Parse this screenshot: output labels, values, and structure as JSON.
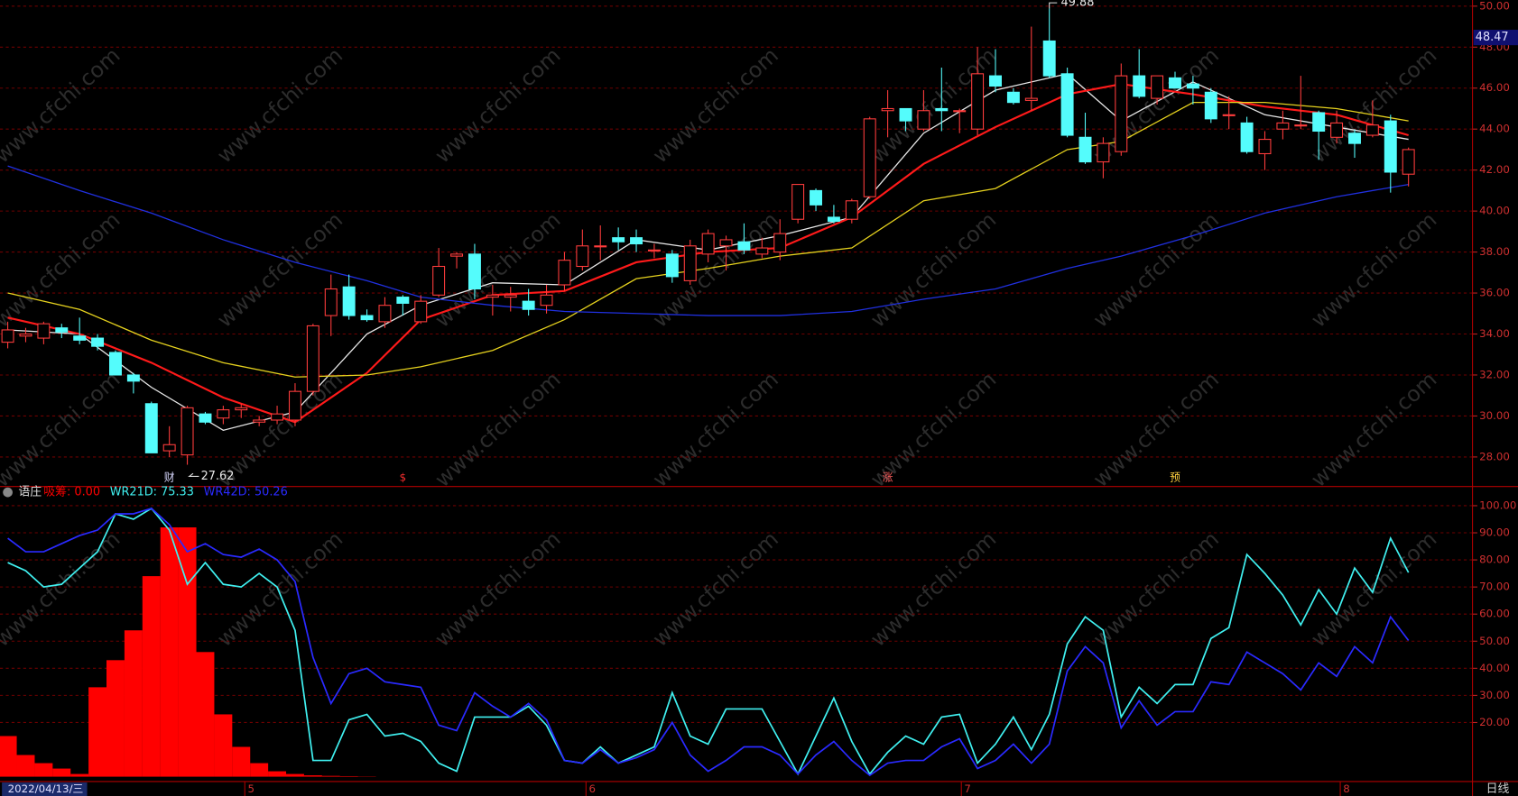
{
  "chart_data": [
    {
      "type": "candlestick",
      "open": [
        33.6,
        33.9,
        33.8,
        34.3,
        33.9,
        33.8,
        33.1,
        32.0,
        30.6,
        28.3,
        28.1,
        30.1,
        29.9,
        30.3,
        29.7,
        29.8,
        29.8,
        31.2,
        34.9,
        36.3,
        34.9,
        34.6,
        35.8,
        34.6,
        35.9,
        37.8,
        37.9,
        35.8,
        35.8,
        35.6,
        35.4,
        36.4,
        37.3,
        38.3,
        38.7,
        38.7,
        38.1,
        37.9,
        36.6,
        37.9,
        38.3,
        38.5,
        37.9,
        38.0,
        39.6,
        41.0,
        39.7,
        39.6,
        40.7,
        44.9,
        45.0,
        44.0,
        45.0,
        44.9,
        44.0,
        46.6,
        45.8,
        45.4,
        48.3,
        46.7,
        43.6,
        42.4,
        42.9,
        46.6,
        45.5,
        46.5,
        46.2,
        45.8,
        44.7,
        44.3,
        42.8,
        44.0,
        44.2,
        44.8,
        43.6,
        43.8,
        43.7,
        44.4,
        41.8
      ],
      "high": [
        34.6,
        34.3,
        34.6,
        34.5,
        34.8,
        34.0,
        33.2,
        32.1,
        30.7,
        29.5,
        30.5,
        30.2,
        30.5,
        30.6,
        30.0,
        30.5,
        31.6,
        34.5,
        36.9,
        36.9,
        35.2,
        35.8,
        35.9,
        35.9,
        38.2,
        38.0,
        38.4,
        36.4,
        36.3,
        36.2,
        36.4,
        38.0,
        39.1,
        39.3,
        39.2,
        39.1,
        38.4,
        38.1,
        38.6,
        39.1,
        38.8,
        39.4,
        38.7,
        39.6,
        41.3,
        41.1,
        40.3,
        40.6,
        44.6,
        45.9,
        45.0,
        45.9,
        47.0,
        45.0,
        48.0,
        47.9,
        46.0,
        49.0,
        49.88,
        47.0,
        44.8,
        43.6,
        47.2,
        47.9,
        46.6,
        46.8,
        46.6,
        46.0,
        45.6,
        44.6,
        43.9,
        44.9,
        46.6,
        44.9,
        44.9,
        44.0,
        45.4,
        44.7,
        43.1
      ],
      "low": [
        33.3,
        33.6,
        33.5,
        33.8,
        33.5,
        33.2,
        32.0,
        31.1,
        28.2,
        28.0,
        27.62,
        29.6,
        29.6,
        29.9,
        29.5,
        29.6,
        29.5,
        31.0,
        33.9,
        34.7,
        34.6,
        34.3,
        34.9,
        34.5,
        35.8,
        37.2,
        35.7,
        34.9,
        35.1,
        34.9,
        35.0,
        36.1,
        37.1,
        37.6,
        38.1,
        38.0,
        37.7,
        36.5,
        36.4,
        37.5,
        37.1,
        37.9,
        37.7,
        37.6,
        39.4,
        40.0,
        39.4,
        39.4,
        40.6,
        43.6,
        43.9,
        43.9,
        43.9,
        43.8,
        43.7,
        45.8,
        45.2,
        44.9,
        46.5,
        43.6,
        42.3,
        41.6,
        42.7,
        45.5,
        45.2,
        46.0,
        45.2,
        44.3,
        44.0,
        42.8,
        42.0,
        43.5,
        44.0,
        42.5,
        43.3,
        42.6,
        43.6,
        40.9,
        41.2
      ],
      "close": [
        34.2,
        34.0,
        34.5,
        34.1,
        33.7,
        33.4,
        32.0,
        31.7,
        28.2,
        28.6,
        30.4,
        29.7,
        30.3,
        30.4,
        29.8,
        30.1,
        31.2,
        34.4,
        36.2,
        34.9,
        34.7,
        35.4,
        35.5,
        35.6,
        37.3,
        37.9,
        36.2,
        35.9,
        35.9,
        35.2,
        35.9,
        37.6,
        38.3,
        38.3,
        38.5,
        38.4,
        38.1,
        36.8,
        38.3,
        38.9,
        38.6,
        38.1,
        38.2,
        38.9,
        41.3,
        40.3,
        39.5,
        40.5,
        44.5,
        45.0,
        44.4,
        44.9,
        44.9,
        44.9,
        46.7,
        46.1,
        45.3,
        45.5,
        46.6,
        43.7,
        42.4,
        43.3,
        46.6,
        45.6,
        46.6,
        46.0,
        46.0,
        44.5,
        44.7,
        42.9,
        43.5,
        44.3,
        44.2,
        43.9,
        44.3,
        43.3,
        44.2,
        41.9,
        43.0
      ],
      "up_color": "#ff3c3c",
      "down_color": "#54fcfc",
      "line_x": [
        0,
        4,
        8,
        12,
        16,
        20,
        23,
        27,
        31,
        35,
        39,
        43,
        47,
        51,
        55,
        59,
        62,
        66,
        70,
        74,
        78
      ],
      "series": [
        {
          "color": "#e8e8e8",
          "values": [
            34.2,
            34.0,
            31.4,
            29.3,
            30.2,
            34.0,
            35.4,
            36.5,
            36.4,
            38.6,
            38.1,
            38.8,
            39.7,
            43.8,
            45.9,
            46.7,
            44.4,
            46.3,
            44.7,
            44.1,
            43.5
          ]
        },
        {
          "color": "#ff1a1a",
          "values": [
            34.8,
            34.0,
            32.6,
            30.9,
            29.7,
            32.1,
            34.7,
            35.9,
            36.1,
            37.5,
            38.0,
            38.2,
            39.7,
            42.3,
            44.1,
            45.7,
            46.2,
            45.7,
            45.1,
            44.7,
            43.7
          ]
        },
        {
          "color": "#e6d21e",
          "values": [
            36.0,
            35.2,
            33.7,
            32.6,
            31.9,
            32.0,
            32.4,
            33.2,
            34.7,
            36.7,
            37.2,
            37.8,
            38.2,
            40.5,
            41.1,
            43.0,
            43.4,
            45.3,
            45.3,
            45.0,
            44.4
          ]
        },
        {
          "color": "#2030e0",
          "values": [
            42.2,
            41.0,
            39.9,
            38.6,
            37.5,
            36.6,
            35.8,
            35.4,
            35.1,
            35.0,
            34.9,
            34.9,
            35.1,
            35.7,
            36.2,
            37.2,
            37.8,
            38.8,
            39.9,
            40.7,
            41.3
          ]
        }
      ],
      "ylim": [
        26.7,
        50.3
      ],
      "yticks": [
        {
          "value": 28,
          "label": "28.00"
        },
        {
          "value": 30,
          "label": "30.00"
        },
        {
          "value": 32,
          "label": "32.00"
        },
        {
          "value": 34,
          "label": "34.00"
        },
        {
          "value": 36,
          "label": "36.00"
        },
        {
          "value": 38,
          "label": "38.00"
        },
        {
          "value": 40,
          "label": "40.00"
        },
        {
          "value": 42,
          "label": "42.00"
        },
        {
          "value": 44,
          "label": "44.00"
        },
        {
          "value": 46,
          "label": "46.00"
        },
        {
          "value": 48,
          "label": "48.00"
        },
        {
          "value": 50,
          "label": "50.00"
        }
      ],
      "grid": true,
      "annotations": [
        {
          "index": 58,
          "value": 49.88
        },
        {
          "index": 10,
          "value": 27.62
        }
      ],
      "price_tag": 48.47,
      "signals": [
        {
          "index": 9,
          "label": "财",
          "color": "#d8d8ff"
        },
        {
          "index": 22,
          "label": "$",
          "color": "#ff3030"
        },
        {
          "index": 49,
          "label": "涨",
          "color": "#ff6060"
        },
        {
          "index": 65,
          "label": "预",
          "color": "#ffd040"
        }
      ]
    },
    {
      "type": "combo",
      "title": "语庄",
      "series": [
        {
          "name": "吸筹: 0.00",
          "kind": "bar",
          "color": "#ff0000",
          "values": [
            15,
            8,
            5,
            3,
            1,
            33,
            43,
            54,
            74,
            92,
            92,
            46,
            23,
            11,
            5,
            2,
            1,
            0.5,
            0.3,
            0.2,
            0.1,
            0,
            0,
            0,
            0,
            0,
            0,
            0,
            0,
            0,
            0,
            0,
            0,
            0,
            0,
            0,
            0,
            0,
            0,
            0,
            0,
            0,
            0,
            0,
            0,
            0,
            0,
            0,
            0,
            0,
            0,
            0,
            0,
            0,
            0,
            0,
            0,
            0,
            0,
            0,
            0,
            0,
            0,
            0,
            0,
            0,
            0,
            0,
            0,
            0,
            0,
            0,
            0,
            0,
            0,
            0,
            0,
            0,
            0
          ]
        },
        {
          "name": "WR21D: 75.33",
          "kind": "line",
          "color": "#40f0f0",
          "values": [
            79,
            76,
            70,
            71,
            77,
            83,
            97,
            95,
            99,
            91,
            71,
            79,
            71,
            70,
            75,
            70,
            54,
            6,
            6,
            21,
            23,
            15,
            16,
            13,
            5,
            2,
            22,
            22,
            22,
            26,
            19,
            6,
            5,
            11,
            5,
            8,
            11,
            31,
            15,
            12,
            25,
            25,
            25,
            13,
            1,
            15,
            29,
            13,
            1,
            9,
            15,
            12,
            22,
            23,
            5,
            12,
            22,
            10,
            23,
            49,
            59,
            54,
            22,
            33,
            27,
            34,
            34,
            51,
            55,
            82,
            75,
            67,
            56,
            69,
            60,
            77,
            68,
            88,
            75.33
          ]
        },
        {
          "name": "WR42D: 50.26",
          "kind": "line",
          "color": "#2a2aff",
          "values": [
            88,
            83,
            83,
            86,
            89,
            91,
            97,
            97,
            99,
            93,
            83,
            86,
            82,
            81,
            84,
            80,
            72,
            44,
            27,
            38,
            40,
            35,
            34,
            33,
            19,
            17,
            31,
            26,
            22,
            27,
            21,
            6,
            5,
            10,
            5,
            7,
            10,
            20,
            8,
            2,
            6,
            11,
            11,
            8,
            1,
            8,
            13,
            6,
            0.5,
            5,
            6,
            6,
            11,
            14,
            3,
            6,
            12,
            5,
            12,
            39,
            48,
            42,
            18,
            28,
            19,
            24,
            24,
            35,
            34,
            46,
            42,
            38,
            32,
            42,
            37,
            48,
            42,
            59,
            50.26
          ]
        }
      ],
      "ylim": [
        -0.7,
        102.8
      ],
      "yticks": [
        {
          "value": 20,
          "label": "20.00"
        },
        {
          "value": 30,
          "label": "30.00"
        },
        {
          "value": 40,
          "label": "40.00"
        },
        {
          "value": 50,
          "label": "50.00"
        },
        {
          "value": 60,
          "label": "60.00"
        },
        {
          "value": 70,
          "label": "70.00"
        },
        {
          "value": 80,
          "label": "80.00"
        },
        {
          "value": 90,
          "label": "90.00"
        },
        {
          "value": 100,
          "label": "100.00"
        }
      ],
      "grid": true,
      "xticks": [
        {
          "value": 13.2,
          "label": "5"
        },
        {
          "value": 32.2,
          "label": "6"
        },
        {
          "value": 53.1,
          "label": "7"
        },
        {
          "value": 74.2,
          "label": "8"
        }
      ],
      "start_date": "2022/04/13/三"
    }
  ],
  "watermark": "www.cfchi.com",
  "period": "日线"
}
